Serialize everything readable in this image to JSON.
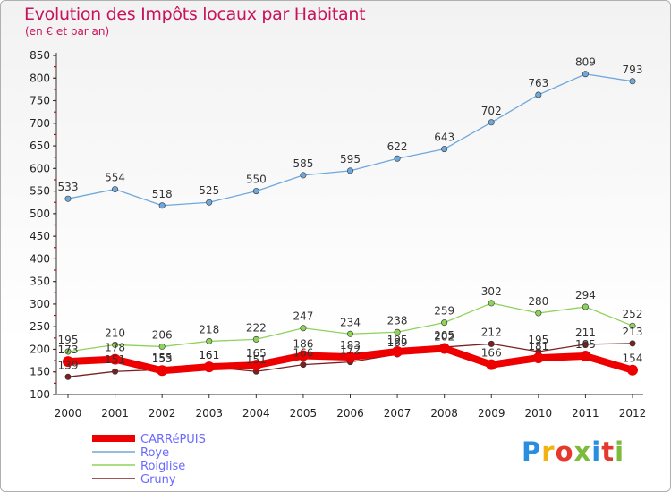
{
  "header": {
    "title": "Evolution des Impôts locaux par Habitant",
    "subtitle": "(en € et par an)"
  },
  "logo": {
    "text": "Proxiti",
    "colors": [
      "#2a8ee0",
      "#f2b211",
      "#e5392f",
      "#7dbb3c",
      "#2a8ee0",
      "#e5392f",
      "#7dbb3c"
    ]
  },
  "chart_data": {
    "type": "line",
    "x": [
      2000,
      2001,
      2002,
      2003,
      2004,
      2005,
      2006,
      2007,
      2008,
      2009,
      2010,
      2011,
      2012
    ],
    "ylim": [
      100,
      850
    ],
    "yticks": [
      100,
      150,
      200,
      250,
      300,
      350,
      400,
      450,
      500,
      550,
      600,
      650,
      700,
      750,
      800,
      850
    ],
    "grid": false,
    "legend": "bottom-left",
    "series": [
      {
        "name": "CARRéPUIS",
        "color": "#ee0000",
        "values": [
          173,
          178,
          153,
          161,
          165,
          186,
          183,
          195,
          202,
          166,
          181,
          185,
          154
        ]
      },
      {
        "name": "Roye",
        "color": "#6fa8dc",
        "values": [
          533,
          554,
          518,
          525,
          550,
          585,
          595,
          622,
          643,
          702,
          763,
          809,
          793
        ]
      },
      {
        "name": "Roiglise",
        "color": "#8fd25a",
        "values": [
          195,
          210,
          206,
          218,
          222,
          247,
          234,
          238,
          259,
          302,
          280,
          294,
          252
        ]
      },
      {
        "name": "Gruny",
        "color": "#7a2020",
        "values": [
          139,
          151,
          155,
          161,
          151,
          166,
          172,
          189,
          205,
          212,
          195,
          211,
          213
        ]
      }
    ]
  }
}
